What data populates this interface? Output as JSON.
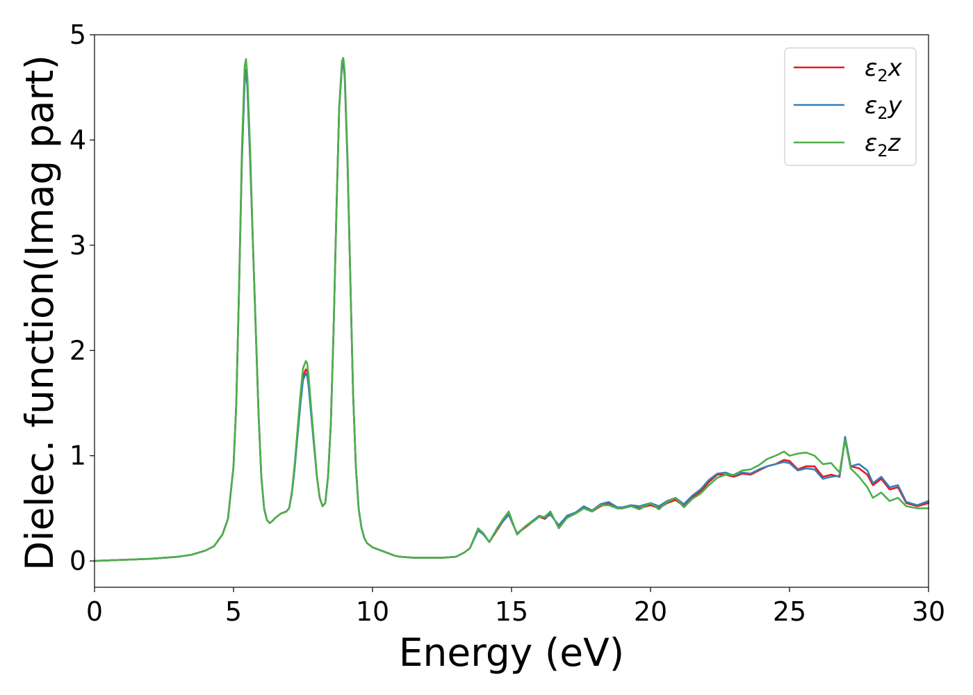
{
  "chart_data": {
    "type": "line",
    "xlabel": "Energy (eV)",
    "ylabel": "Dielec. function(Imag part)",
    "xlim": [
      0,
      30
    ],
    "ylim": [
      -0.25,
      5.0
    ],
    "xticks": [
      "0",
      "5",
      "10",
      "15",
      "20",
      "25",
      "30"
    ],
    "yticks": [
      "0",
      "1",
      "2",
      "3",
      "4",
      "5"
    ],
    "grid": false,
    "legend_position": "top-right",
    "series": [
      {
        "name": "ε₂x",
        "label_main": "ε",
        "label_sub": "2",
        "label_tail": "x",
        "color": "#e41a1c",
        "x": [
          0,
          1,
          2,
          3,
          3.5,
          4,
          4.3,
          4.6,
          4.8,
          5.0,
          5.1,
          5.2,
          5.3,
          5.4,
          5.45,
          5.5,
          5.6,
          5.7,
          5.8,
          5.9,
          6.0,
          6.1,
          6.2,
          6.3,
          6.4,
          6.5,
          6.7,
          6.9,
          7.0,
          7.1,
          7.2,
          7.3,
          7.4,
          7.5,
          7.6,
          7.65,
          7.7,
          7.8,
          7.9,
          8.0,
          8.1,
          8.2,
          8.3,
          8.4,
          8.5,
          8.6,
          8.7,
          8.8,
          8.9,
          8.95,
          9.0,
          9.1,
          9.2,
          9.3,
          9.4,
          9.5,
          9.6,
          9.7,
          9.8,
          10.0,
          10.2,
          10.4,
          10.6,
          10.8,
          11,
          11.5,
          12,
          12.5,
          13,
          13.3,
          13.5,
          13.8,
          14.0,
          14.2,
          14.5,
          14.7,
          14.9,
          15.2,
          15.5,
          15.8,
          16.0,
          16.2,
          16.4,
          16.7,
          17.0,
          17.3,
          17.6,
          17.9,
          18.2,
          18.5,
          18.8,
          19.0,
          19.3,
          19.6,
          20.0,
          20.3,
          20.6,
          20.9,
          21.2,
          21.5,
          21.8,
          22.1,
          22.4,
          22.7,
          23.0,
          23.3,
          23.6,
          23.9,
          24.2,
          24.5,
          24.8,
          25.0,
          25.3,
          25.6,
          25.9,
          26.2,
          26.5,
          26.8,
          27.0,
          27.2,
          27.5,
          27.8,
          28.0,
          28.3,
          28.6,
          28.9,
          29.2,
          29.6,
          30.0
        ],
        "y": [
          0.0,
          0.01,
          0.02,
          0.04,
          0.06,
          0.1,
          0.14,
          0.25,
          0.4,
          0.9,
          1.5,
          2.6,
          3.8,
          4.6,
          4.67,
          4.5,
          3.8,
          3.0,
          2.2,
          1.4,
          0.8,
          0.5,
          0.39,
          0.36,
          0.38,
          0.41,
          0.45,
          0.47,
          0.5,
          0.65,
          0.9,
          1.2,
          1.5,
          1.75,
          1.82,
          1.8,
          1.7,
          1.4,
          1.1,
          0.8,
          0.6,
          0.52,
          0.55,
          0.8,
          1.3,
          2.2,
          3.3,
          4.3,
          4.7,
          4.72,
          4.6,
          3.8,
          2.7,
          1.6,
          0.9,
          0.5,
          0.32,
          0.22,
          0.17,
          0.13,
          0.11,
          0.09,
          0.07,
          0.05,
          0.04,
          0.03,
          0.03,
          0.03,
          0.04,
          0.08,
          0.12,
          0.3,
          0.25,
          0.18,
          0.3,
          0.38,
          0.44,
          0.26,
          0.32,
          0.38,
          0.42,
          0.4,
          0.45,
          0.33,
          0.42,
          0.45,
          0.5,
          0.47,
          0.52,
          0.55,
          0.5,
          0.5,
          0.52,
          0.5,
          0.53,
          0.5,
          0.55,
          0.58,
          0.52,
          0.6,
          0.66,
          0.75,
          0.82,
          0.82,
          0.8,
          0.83,
          0.82,
          0.86,
          0.9,
          0.92,
          0.96,
          0.95,
          0.87,
          0.9,
          0.9,
          0.8,
          0.82,
          0.8,
          1.17,
          0.9,
          0.88,
          0.82,
          0.72,
          0.78,
          0.68,
          0.7,
          0.55,
          0.52,
          0.55
        ]
      },
      {
        "name": "ε₂y",
        "label_main": "ε",
        "label_sub": "2",
        "label_tail": "y",
        "color": "#377eb8",
        "x": [
          0,
          1,
          2,
          3,
          3.5,
          4,
          4.3,
          4.6,
          4.8,
          5.0,
          5.1,
          5.2,
          5.3,
          5.4,
          5.45,
          5.5,
          5.6,
          5.7,
          5.8,
          5.9,
          6.0,
          6.1,
          6.2,
          6.3,
          6.4,
          6.5,
          6.7,
          6.9,
          7.0,
          7.1,
          7.2,
          7.3,
          7.4,
          7.5,
          7.6,
          7.65,
          7.7,
          7.8,
          7.9,
          8.0,
          8.1,
          8.2,
          8.3,
          8.4,
          8.5,
          8.6,
          8.7,
          8.8,
          8.9,
          8.95,
          9.0,
          9.1,
          9.2,
          9.3,
          9.4,
          9.5,
          9.6,
          9.7,
          9.8,
          10.0,
          10.2,
          10.4,
          10.6,
          10.8,
          11,
          11.5,
          12,
          12.5,
          13,
          13.3,
          13.5,
          13.8,
          14.0,
          14.2,
          14.5,
          14.7,
          14.9,
          15.2,
          15.5,
          15.8,
          16.0,
          16.2,
          16.4,
          16.7,
          17.0,
          17.3,
          17.6,
          17.9,
          18.2,
          18.5,
          18.8,
          19.0,
          19.3,
          19.6,
          20.0,
          20.3,
          20.6,
          20.9,
          21.2,
          21.5,
          21.8,
          22.1,
          22.4,
          22.7,
          23.0,
          23.3,
          23.6,
          23.9,
          24.2,
          24.5,
          24.8,
          25.0,
          25.3,
          25.6,
          25.9,
          26.2,
          26.5,
          26.8,
          27.0,
          27.2,
          27.5,
          27.8,
          28.0,
          28.3,
          28.6,
          28.9,
          29.2,
          29.6,
          30.0
        ],
        "y": [
          0.0,
          0.01,
          0.02,
          0.04,
          0.06,
          0.1,
          0.14,
          0.25,
          0.4,
          0.9,
          1.5,
          2.6,
          3.8,
          4.55,
          4.64,
          4.5,
          3.8,
          3.0,
          2.2,
          1.4,
          0.8,
          0.5,
          0.39,
          0.36,
          0.38,
          0.41,
          0.45,
          0.47,
          0.5,
          0.64,
          0.88,
          1.18,
          1.47,
          1.72,
          1.78,
          1.76,
          1.66,
          1.37,
          1.08,
          0.8,
          0.6,
          0.52,
          0.55,
          0.8,
          1.3,
          2.2,
          3.3,
          4.3,
          4.7,
          4.73,
          4.6,
          3.8,
          2.7,
          1.6,
          0.9,
          0.5,
          0.32,
          0.22,
          0.17,
          0.13,
          0.11,
          0.09,
          0.07,
          0.05,
          0.04,
          0.03,
          0.03,
          0.03,
          0.04,
          0.08,
          0.12,
          0.29,
          0.25,
          0.18,
          0.31,
          0.38,
          0.44,
          0.26,
          0.33,
          0.39,
          0.43,
          0.41,
          0.44,
          0.34,
          0.43,
          0.46,
          0.52,
          0.48,
          0.54,
          0.56,
          0.51,
          0.51,
          0.53,
          0.52,
          0.55,
          0.52,
          0.57,
          0.6,
          0.54,
          0.62,
          0.68,
          0.77,
          0.83,
          0.84,
          0.81,
          0.84,
          0.83,
          0.87,
          0.9,
          0.92,
          0.94,
          0.93,
          0.86,
          0.88,
          0.87,
          0.78,
          0.8,
          0.81,
          1.18,
          0.9,
          0.92,
          0.86,
          0.74,
          0.8,
          0.7,
          0.72,
          0.56,
          0.53,
          0.57
        ]
      },
      {
        "name": "ε₂z",
        "label_main": "ε",
        "label_sub": "2",
        "label_tail": "z",
        "color": "#4daf4a",
        "x": [
          0,
          1,
          2,
          3,
          3.5,
          4,
          4.3,
          4.6,
          4.8,
          5.0,
          5.1,
          5.2,
          5.3,
          5.4,
          5.45,
          5.5,
          5.6,
          5.7,
          5.8,
          5.9,
          6.0,
          6.1,
          6.2,
          6.3,
          6.4,
          6.5,
          6.7,
          6.9,
          7.0,
          7.1,
          7.2,
          7.3,
          7.4,
          7.5,
          7.6,
          7.65,
          7.7,
          7.8,
          7.9,
          8.0,
          8.1,
          8.2,
          8.3,
          8.4,
          8.5,
          8.6,
          8.7,
          8.8,
          8.9,
          8.95,
          9.0,
          9.1,
          9.2,
          9.3,
          9.4,
          9.5,
          9.6,
          9.7,
          9.8,
          10.0,
          10.2,
          10.4,
          10.6,
          10.8,
          11,
          11.5,
          12,
          12.5,
          13,
          13.3,
          13.5,
          13.8,
          14.0,
          14.2,
          14.5,
          14.7,
          14.9,
          15.2,
          15.5,
          15.8,
          16.0,
          16.2,
          16.4,
          16.7,
          17.0,
          17.3,
          17.6,
          17.9,
          18.2,
          18.5,
          18.8,
          19.0,
          19.3,
          19.6,
          20.0,
          20.3,
          20.6,
          20.9,
          21.2,
          21.5,
          21.8,
          22.1,
          22.4,
          22.7,
          23.0,
          23.3,
          23.6,
          23.9,
          24.2,
          24.5,
          24.8,
          25.0,
          25.3,
          25.6,
          25.9,
          26.2,
          26.5,
          26.8,
          27.0,
          27.2,
          27.5,
          27.8,
          28.0,
          28.3,
          28.6,
          28.9,
          29.2,
          29.6,
          30.0
        ],
        "y": [
          0.0,
          0.01,
          0.02,
          0.04,
          0.06,
          0.1,
          0.14,
          0.25,
          0.4,
          0.9,
          1.5,
          2.6,
          3.9,
          4.7,
          4.77,
          4.6,
          3.9,
          3.0,
          2.2,
          1.4,
          0.8,
          0.5,
          0.39,
          0.36,
          0.38,
          0.41,
          0.45,
          0.47,
          0.5,
          0.66,
          0.92,
          1.24,
          1.56,
          1.83,
          1.9,
          1.88,
          1.76,
          1.43,
          1.12,
          0.8,
          0.6,
          0.52,
          0.55,
          0.8,
          1.3,
          2.2,
          3.3,
          4.3,
          4.75,
          4.78,
          4.65,
          3.85,
          2.7,
          1.6,
          0.9,
          0.5,
          0.32,
          0.22,
          0.17,
          0.13,
          0.11,
          0.09,
          0.07,
          0.05,
          0.04,
          0.03,
          0.03,
          0.03,
          0.04,
          0.08,
          0.12,
          0.31,
          0.26,
          0.18,
          0.32,
          0.4,
          0.47,
          0.25,
          0.33,
          0.38,
          0.42,
          0.42,
          0.47,
          0.31,
          0.41,
          0.45,
          0.5,
          0.47,
          0.53,
          0.53,
          0.5,
          0.5,
          0.52,
          0.49,
          0.55,
          0.49,
          0.56,
          0.6,
          0.51,
          0.59,
          0.64,
          0.72,
          0.79,
          0.82,
          0.82,
          0.86,
          0.87,
          0.91,
          0.97,
          1.0,
          1.04,
          1.0,
          1.02,
          1.03,
          1.0,
          0.92,
          0.93,
          0.84,
          1.15,
          0.88,
          0.8,
          0.7,
          0.6,
          0.65,
          0.57,
          0.6,
          0.52,
          0.5,
          0.5
        ]
      }
    ]
  }
}
